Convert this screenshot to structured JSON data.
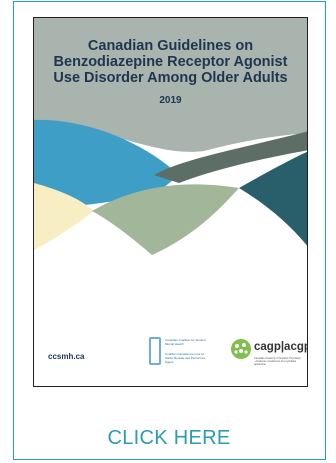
{
  "cover": {
    "title_line1": "Canadian Guidelines on",
    "title_line2": "Benzodiazepine Receptor Agonist",
    "title_line3": "Use Disorder Among Older Adults",
    "year": "2019",
    "footer_url": "ccsmh.ca",
    "ccsmh_logo": {
      "english": "Canadian Coalition for Seniors' Mental Health",
      "french": "Coalition Canadienne pour la Santé Mentale des Personnes Âgées"
    },
    "cagp_logo": {
      "wordmark": "cagp|acgp",
      "subtitle": "Canadian Academy of Geriatric Psychiatry · Académie canadienne de psychiatrie gériatrique"
    }
  },
  "cta": {
    "label": "CLICK HERE"
  },
  "colors": {
    "accent": "#2a9db0",
    "title_text": "#1f3550",
    "cover_grey": "#a9b4ae",
    "wave_blue": "#3f9ec6",
    "wave_sage": "#a2b79a",
    "wave_slate": "#5d6e66",
    "wave_teal": "#285f6b",
    "wave_cream": "#f7eec4"
  }
}
